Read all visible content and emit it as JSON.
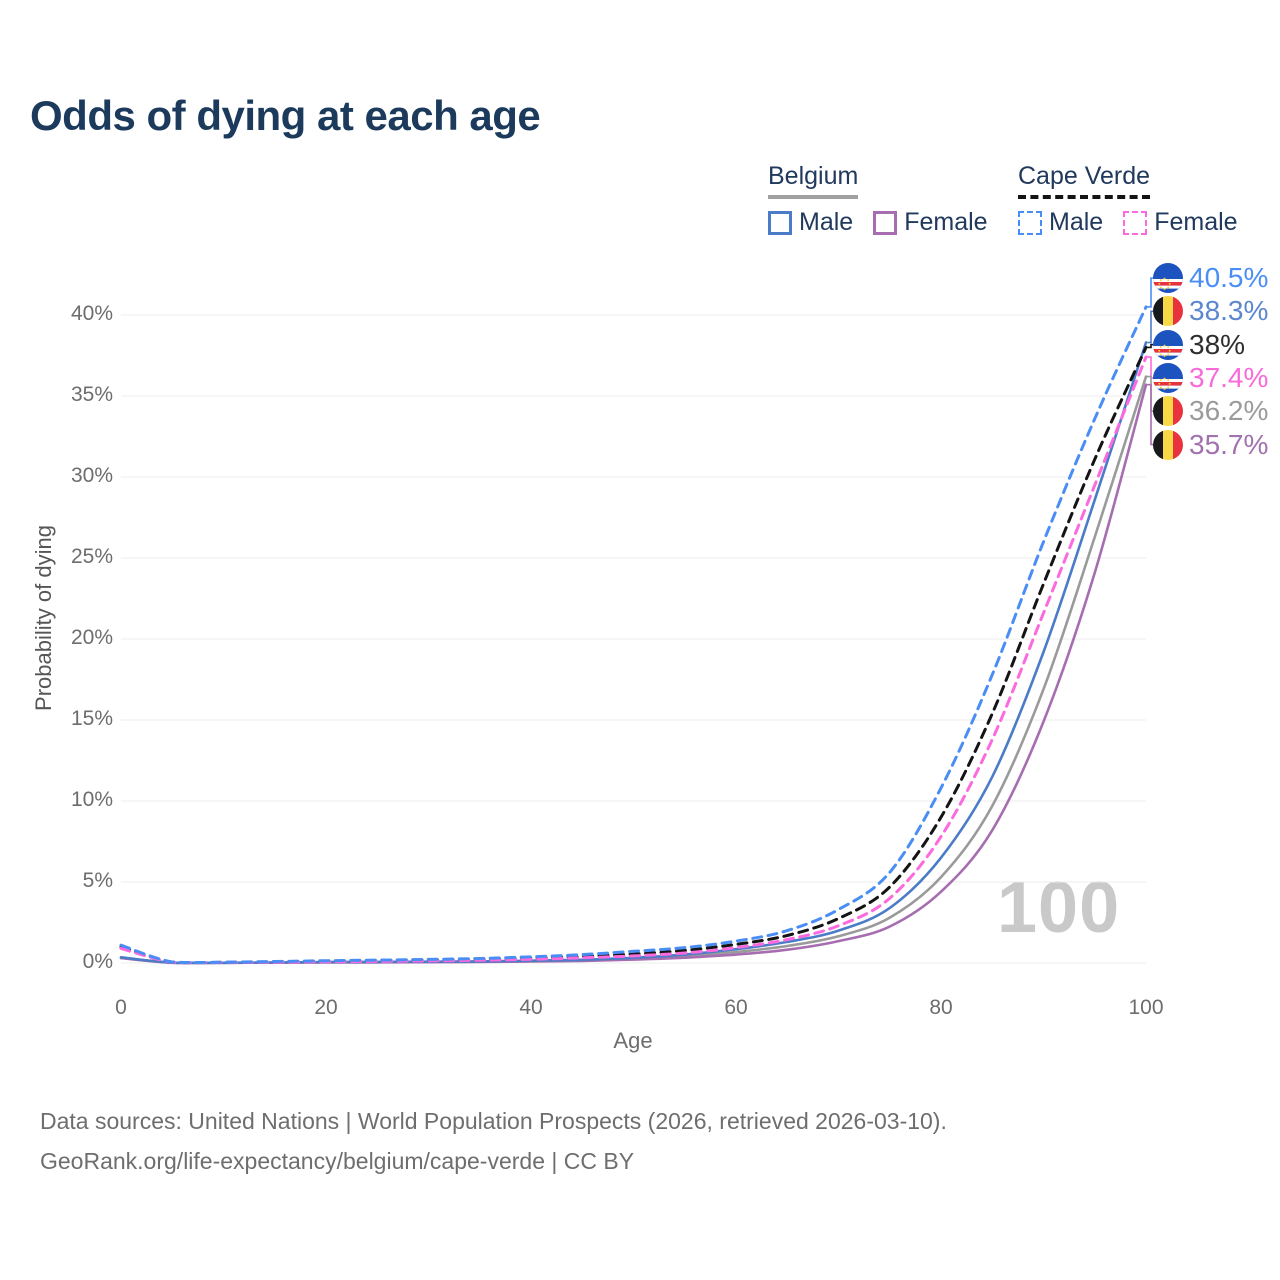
{
  "title": "Odds of dying at each age",
  "watermark_age": "100",
  "legend": {
    "groups": [
      {
        "id": "belgium",
        "label": "Belgium",
        "line_style": "solid",
        "line_color": "#a0a0a0",
        "items": [
          {
            "id": "belgium-male",
            "label": "Male",
            "color": "#4a7cc7",
            "dash": false
          },
          {
            "id": "belgium-female",
            "label": "Female",
            "color": "#a76db1",
            "dash": false
          }
        ]
      },
      {
        "id": "cape-verde",
        "label": "Cape Verde",
        "line_style": "dashed",
        "line_color": "#141414",
        "items": [
          {
            "id": "cape-verde-male",
            "label": "Male",
            "color": "#4a8ef5",
            "dash": true
          },
          {
            "id": "cape-verde-female",
            "label": "Female",
            "color": "#fb6ade",
            "dash": true
          }
        ]
      }
    ]
  },
  "chart_data": {
    "type": "line",
    "title": "Odds of dying at each age",
    "xlabel": "Age",
    "ylabel": "Probability of dying",
    "x_range": [
      0,
      100
    ],
    "y_range_pct": [
      0,
      43
    ],
    "x_ticks": [
      0,
      20,
      40,
      60,
      80,
      100
    ],
    "y_ticks_pct": [
      0,
      5,
      10,
      15,
      20,
      25,
      30,
      35,
      40
    ],
    "grid": "horizontal-only",
    "legend_position": "top-right",
    "ages": [
      0,
      5,
      10,
      15,
      20,
      25,
      30,
      35,
      40,
      45,
      50,
      55,
      60,
      65,
      70,
      75,
      80,
      85,
      90,
      95,
      100
    ],
    "series": [
      {
        "id": "belgium-total",
        "name": "Belgium (both sexes)",
        "color": "#9a9a9a",
        "dash": false,
        "values_pct": [
          0.32,
          0.018,
          0.012,
          0.025,
          0.045,
          0.055,
          0.065,
          0.08,
          0.11,
          0.16,
          0.26,
          0.42,
          0.68,
          1.05,
          1.65,
          2.8,
          5.3,
          9.7,
          16.9,
          26.3,
          36.2
        ],
        "end_value_pct": 36.2
      },
      {
        "id": "belgium-female",
        "name": "Belgium Female",
        "color": "#a76db1",
        "dash": false,
        "values_pct": [
          0.3,
          0.015,
          0.01,
          0.02,
          0.03,
          0.04,
          0.05,
          0.06,
          0.09,
          0.13,
          0.21,
          0.33,
          0.52,
          0.82,
          1.35,
          2.25,
          4.4,
          8.2,
          14.9,
          24.1,
          35.7
        ],
        "end_value_pct": 35.7
      },
      {
        "id": "belgium-male",
        "name": "Belgium Male",
        "color": "#4a7cc7",
        "dash": false,
        "values_pct": [
          0.35,
          0.02,
          0.015,
          0.03,
          0.06,
          0.07,
          0.08,
          0.1,
          0.14,
          0.2,
          0.32,
          0.52,
          0.85,
          1.3,
          2.0,
          3.4,
          6.5,
          11.5,
          19.2,
          28.6,
          38.3
        ],
        "end_value_pct": 38.3
      },
      {
        "id": "cape-verde-total",
        "name": "Cape Verde (both sexes)",
        "color": "#141414",
        "dash": true,
        "values_pct": [
          1.0,
          0.05,
          0.04,
          0.07,
          0.11,
          0.14,
          0.17,
          0.22,
          0.3,
          0.4,
          0.55,
          0.78,
          1.15,
          1.7,
          2.75,
          4.7,
          9.0,
          15.4,
          23.4,
          31.1,
          38.0
        ],
        "end_value_pct": 38.0
      },
      {
        "id": "cape-verde-female",
        "name": "Cape Verde Female",
        "color": "#fb6ade",
        "dash": true,
        "values_pct": [
          0.9,
          0.045,
          0.035,
          0.05,
          0.08,
          0.1,
          0.13,
          0.17,
          0.23,
          0.32,
          0.44,
          0.62,
          0.95,
          1.45,
          2.3,
          4.0,
          7.8,
          13.8,
          21.6,
          29.5,
          37.4
        ],
        "end_value_pct": 37.4
      },
      {
        "id": "cape-verde-male",
        "name": "Cape Verde Male",
        "color": "#4a8ef5",
        "dash": true,
        "values_pct": [
          1.1,
          0.06,
          0.05,
          0.09,
          0.14,
          0.18,
          0.22,
          0.28,
          0.38,
          0.52,
          0.72,
          0.95,
          1.35,
          2.0,
          3.3,
          5.6,
          10.8,
          17.8,
          26.0,
          33.6,
          40.5
        ],
        "end_value_pct": 40.5
      }
    ]
  },
  "end_labels": [
    {
      "value": "40.5%",
      "series": "cape-verde-male",
      "flag": "cape-verde",
      "color": "#4a8ef5"
    },
    {
      "value": "38.3%",
      "series": "belgium-male",
      "flag": "belgium",
      "color": "#5b87cf"
    },
    {
      "value": "38%",
      "series": "cape-verde-total",
      "flag": "cape-verde",
      "color": "#2e2e2e"
    },
    {
      "value": "37.4%",
      "series": "cape-verde-female",
      "flag": "cape-verde",
      "color": "#f96ad9"
    },
    {
      "value": "36.2%",
      "series": "belgium-total",
      "flag": "belgium",
      "color": "#9b9b9b"
    },
    {
      "value": "35.7%",
      "series": "belgium-female",
      "flag": "belgium",
      "color": "#a272ae"
    }
  ],
  "footer": {
    "line1": "Data sources: United Nations | World Population Prospects (2026, retrieved 2026-03-10).",
    "line2": "GeoRank.org/life-expectancy/belgium/cape-verde | CC BY"
  }
}
